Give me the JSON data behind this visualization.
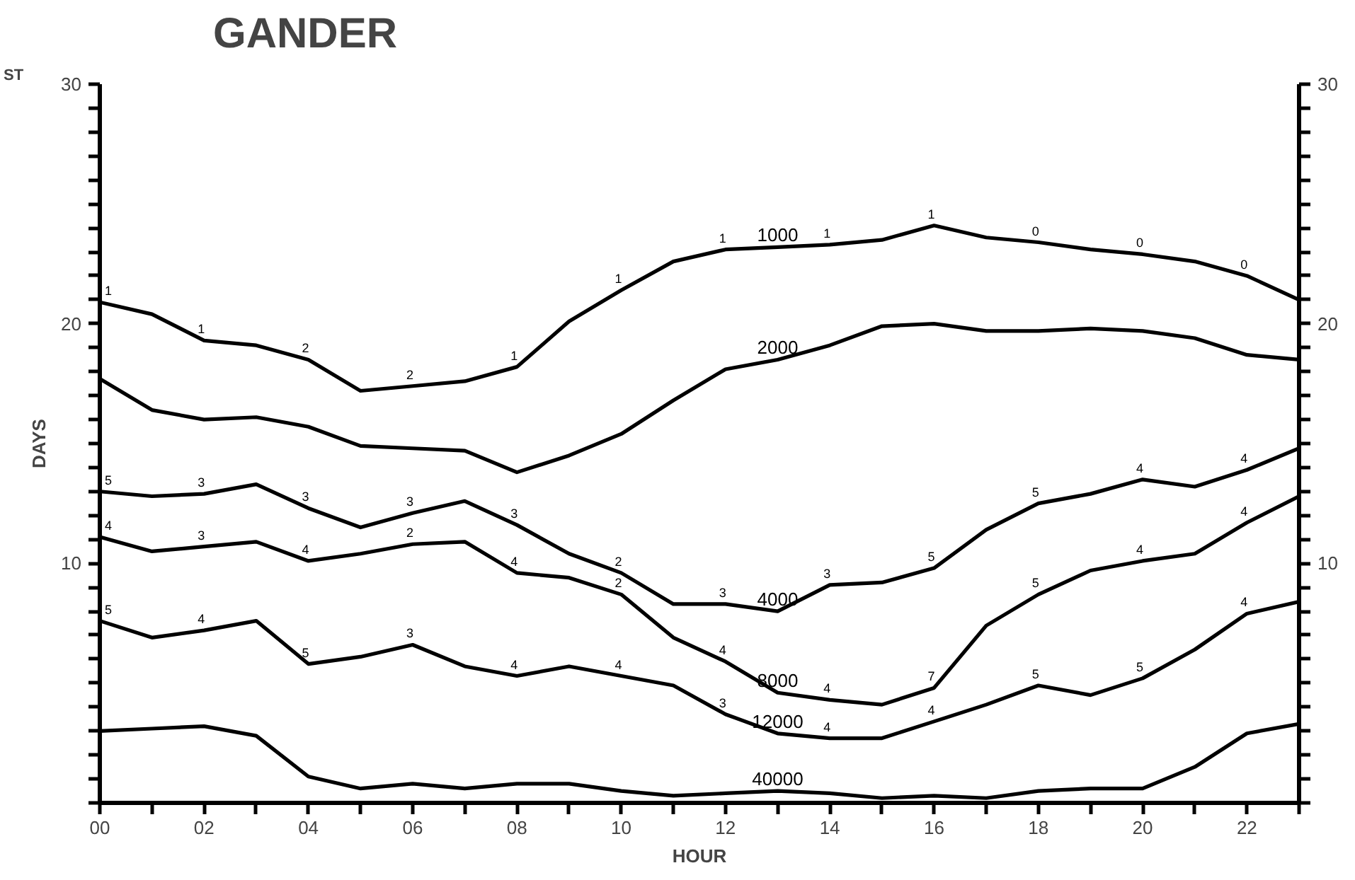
{
  "chart_data": {
    "type": "line",
    "title": "GANDER",
    "xlabel": "HOUR",
    "ylabel": "DAYS",
    "x": [
      0,
      1,
      2,
      3,
      4,
      5,
      6,
      7,
      8,
      9,
      10,
      11,
      12,
      13,
      14,
      15,
      16,
      17,
      18,
      19,
      20,
      21,
      22,
      23
    ],
    "xlim": [
      0,
      23
    ],
    "ylim": [
      0,
      30
    ],
    "y2lim": [
      0,
      30
    ],
    "xticks": [
      {
        "value": 0,
        "label": "00"
      },
      {
        "value": 1,
        "label": null
      },
      {
        "value": 2,
        "label": "02"
      },
      {
        "value": 3,
        "label": null
      },
      {
        "value": 4,
        "label": "04"
      },
      {
        "value": 5,
        "label": null
      },
      {
        "value": 6,
        "label": "06"
      },
      {
        "value": 7,
        "label": null
      },
      {
        "value": 8,
        "label": "08"
      },
      {
        "value": 9,
        "label": null
      },
      {
        "value": 10,
        "label": "10"
      },
      {
        "value": 11,
        "label": null
      },
      {
        "value": 12,
        "label": "12"
      },
      {
        "value": 13,
        "label": null
      },
      {
        "value": 14,
        "label": "14"
      },
      {
        "value": 15,
        "label": null
      },
      {
        "value": 16,
        "label": "16"
      },
      {
        "value": 17,
        "label": null
      },
      {
        "value": 18,
        "label": "18"
      },
      {
        "value": 19,
        "label": null
      },
      {
        "value": 20,
        "label": "20"
      },
      {
        "value": 21,
        "label": null
      },
      {
        "value": 22,
        "label": "22"
      },
      {
        "value": 23,
        "label": null
      }
    ],
    "yticks": [
      {
        "value": 0,
        "label": null
      },
      {
        "value": 1,
        "label": null
      },
      {
        "value": 2,
        "label": null
      },
      {
        "value": 3,
        "label": null
      },
      {
        "value": 4,
        "label": null
      },
      {
        "value": 5,
        "label": null
      },
      {
        "value": 6,
        "label": null
      },
      {
        "value": 7,
        "label": null
      },
      {
        "value": 8,
        "label": null
      },
      {
        "value": 9,
        "label": null
      },
      10,
      {
        "value": 11,
        "label": null
      },
      {
        "value": 12,
        "label": null
      },
      {
        "value": 13,
        "label": null
      },
      {
        "value": 14,
        "label": null
      },
      {
        "value": 15,
        "label": null
      },
      {
        "value": 16,
        "label": null
      },
      {
        "value": 17,
        "label": null
      },
      {
        "value": 18,
        "label": null
      },
      {
        "value": 19,
        "label": null
      },
      20,
      {
        "value": 21,
        "label": null
      },
      {
        "value": 22,
        "label": null
      },
      {
        "value": 23,
        "label": null
      },
      {
        "value": 24,
        "label": null
      },
      {
        "value": 25,
        "label": null
      },
      {
        "value": 26,
        "label": null
      },
      {
        "value": 27,
        "label": null
      },
      {
        "value": 28,
        "label": null
      },
      {
        "value": 29,
        "label": null
      },
      30
    ],
    "y2ticks": [
      {
        "value": 0,
        "label": null
      },
      {
        "value": 1,
        "label": null
      },
      {
        "value": 2,
        "label": null
      },
      {
        "value": 3,
        "label": null
      },
      {
        "value": 4,
        "label": null
      },
      {
        "value": 5,
        "label": null
      },
      {
        "value": 6,
        "label": null
      },
      {
        "value": 7,
        "label": null
      },
      {
        "value": 8,
        "label": null
      },
      {
        "value": 9,
        "label": null
      },
      10,
      {
        "value": 11,
        "label": null
      },
      {
        "value": 12,
        "label": null
      },
      {
        "value": 13,
        "label": null
      },
      {
        "value": 14,
        "label": null
      },
      {
        "value": 15,
        "label": null
      },
      {
        "value": 16,
        "label": null
      },
      {
        "value": 17,
        "label": null
      },
      {
        "value": 18,
        "label": null
      },
      {
        "value": 19,
        "label": null
      },
      20,
      {
        "value": 21,
        "label": null
      },
      {
        "value": 22,
        "label": null
      },
      {
        "value": 23,
        "label": null
      },
      {
        "value": 24,
        "label": null
      },
      {
        "value": 25,
        "label": null
      },
      {
        "value": 26,
        "label": null
      },
      {
        "value": 27,
        "label": null
      },
      {
        "value": 28,
        "label": null
      },
      {
        "value": 29,
        "label": null
      },
      30
    ],
    "grid": false,
    "marker": "none",
    "line_style": "solid",
    "series": [
      {
        "name": "1000",
        "color": "#000000",
        "values": [
          20.9,
          20.4,
          19.3,
          19.1,
          18.5,
          17.2,
          17.4,
          17.6,
          18.2,
          20.1,
          21.4,
          22.6,
          23.1,
          23.2,
          23.3,
          23.5,
          24.1,
          23.6,
          23.4,
          23.1,
          22.9,
          22.6,
          22.0,
          21.0
        ]
      },
      {
        "name": "2000",
        "color": "#000000",
        "values": [
          17.7,
          16.4,
          16.0,
          16.1,
          15.7,
          14.9,
          14.8,
          14.7,
          13.8,
          14.5,
          15.4,
          16.8,
          18.1,
          18.5,
          19.1,
          19.9,
          20.0,
          19.7,
          19.7,
          19.8,
          19.7,
          19.4,
          18.7,
          18.5
        ]
      },
      {
        "name": "4000",
        "color": "#000000",
        "values": [
          13.0,
          12.8,
          12.9,
          13.3,
          12.3,
          11.5,
          12.1,
          12.6,
          11.6,
          10.4,
          9.6,
          8.3,
          8.3,
          8.0,
          9.1,
          9.2,
          9.8,
          11.4,
          12.5,
          12.9,
          13.5,
          13.2,
          13.9,
          14.8
        ]
      },
      {
        "name": "8000",
        "color": "#000000",
        "values": [
          11.1,
          10.5,
          10.7,
          10.9,
          10.1,
          10.4,
          10.8,
          10.9,
          9.6,
          9.4,
          8.7,
          6.9,
          5.9,
          4.6,
          4.3,
          4.1,
          4.8,
          7.4,
          8.7,
          9.7,
          10.1,
          10.4,
          11.7,
          12.8
        ]
      },
      {
        "name": "12000",
        "color": "#000000",
        "values": [
          7.6,
          6.9,
          7.2,
          7.6,
          5.8,
          6.1,
          6.6,
          5.7,
          5.3,
          5.7,
          5.3,
          4.9,
          3.7,
          2.9,
          2.7,
          2.7,
          3.4,
          4.1,
          4.9,
          4.5,
          5.2,
          6.4,
          7.9,
          8.4
        ]
      },
      {
        "name": "40000",
        "color": "#000000",
        "values": [
          3.0,
          3.1,
          3.2,
          2.8,
          1.1,
          0.6,
          0.8,
          0.6,
          0.8,
          0.8,
          0.5,
          0.3,
          0.4,
          0.5,
          0.4,
          0.2,
          0.3,
          0.2,
          0.5,
          0.6,
          0.6,
          1.5,
          2.9,
          3.3
        ]
      }
    ],
    "annotations": [
      "ST",
      {
        "text": "1",
        "x": 0,
        "y": 20.9
      },
      {
        "text": "1",
        "x": 2,
        "y": 19.3
      },
      {
        "text": "2",
        "x": 4,
        "y": 18.5
      },
      {
        "text": "2",
        "x": 6,
        "y": 17.4
      },
      {
        "text": "1",
        "x": 8,
        "y": 18.2
      },
      {
        "text": "1",
        "x": 10,
        "y": 21.4
      },
      {
        "text": "1",
        "x": 12,
        "y": 23.1
      },
      {
        "text": "1",
        "x": 14,
        "y": 23.3
      },
      {
        "text": "1",
        "x": 16,
        "y": 24.1
      },
      {
        "text": "0",
        "x": 18,
        "y": 23.4
      },
      {
        "text": "0",
        "x": 20,
        "y": 22.9
      },
      {
        "text": "0",
        "x": 22,
        "y": 22.0
      },
      {
        "text": "5",
        "x": 0,
        "y": 13.0
      },
      {
        "text": "3",
        "x": 2,
        "y": 12.9
      },
      {
        "text": "3",
        "x": 4,
        "y": 12.3
      },
      {
        "text": "3",
        "x": 6,
        "y": 12.1
      },
      {
        "text": "3",
        "x": 8,
        "y": 11.6
      },
      {
        "text": "2",
        "x": 10,
        "y": 9.6
      },
      {
        "text": "3",
        "x": 12,
        "y": 8.3
      },
      {
        "text": "3",
        "x": 14,
        "y": 9.1
      },
      {
        "text": "5",
        "x": 16,
        "y": 9.8
      },
      {
        "text": "5",
        "x": 18,
        "y": 12.5
      },
      {
        "text": "4",
        "x": 20,
        "y": 13.5
      },
      {
        "text": "4",
        "x": 22,
        "y": 13.9
      },
      {
        "text": "4",
        "x": 0,
        "y": 11.1
      },
      {
        "text": "3",
        "x": 2,
        "y": 10.7
      },
      {
        "text": "4",
        "x": 4,
        "y": 10.1
      },
      {
        "text": "2",
        "x": 6,
        "y": 10.8
      },
      {
        "text": "4",
        "x": 8,
        "y": 9.6
      },
      {
        "text": "2",
        "x": 10,
        "y": 8.7
      },
      {
        "text": "4",
        "x": 12,
        "y": 5.9
      },
      {
        "text": "4",
        "x": 14,
        "y": 4.3
      },
      {
        "text": "7",
        "x": 16,
        "y": 4.8
      },
      {
        "text": "5",
        "x": 18,
        "y": 8.7
      },
      {
        "text": "4",
        "x": 20,
        "y": 10.1
      },
      {
        "text": "4",
        "x": 22,
        "y": 11.7
      },
      {
        "text": "5",
        "x": 0,
        "y": 7.6
      },
      {
        "text": "4",
        "x": 2,
        "y": 7.2
      },
      {
        "text": "5",
        "x": 4,
        "y": 5.8
      },
      {
        "text": "3",
        "x": 6,
        "y": 6.6
      },
      {
        "text": "4",
        "x": 8,
        "y": 5.3
      },
      {
        "text": "4",
        "x": 10,
        "y": 5.3
      },
      {
        "text": "3",
        "x": 12,
        "y": 3.7
      },
      {
        "text": "4",
        "x": 14,
        "y": 2.7
      },
      {
        "text": "4",
        "x": 16,
        "y": 3.4
      },
      {
        "text": "5",
        "x": 18,
        "y": 4.9
      },
      {
        "text": "5",
        "x": 20,
        "y": 5.2
      },
      {
        "text": "4",
        "x": 22,
        "y": 7.9
      }
    ]
  }
}
